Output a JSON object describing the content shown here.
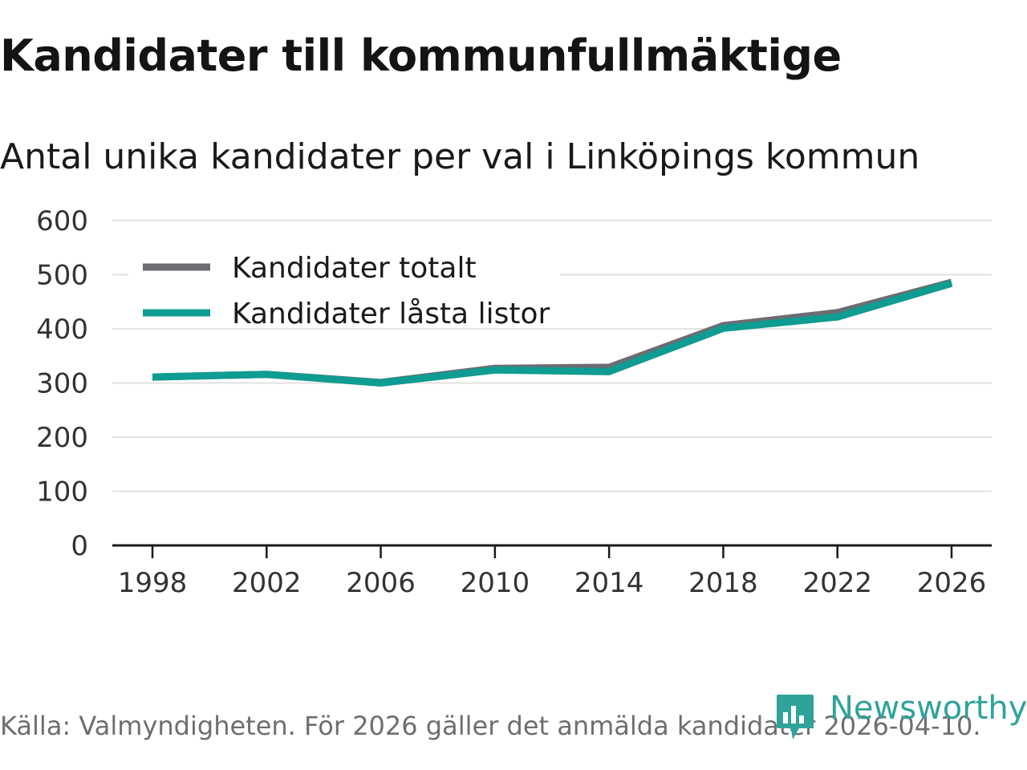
{
  "title": "Kandidater till kommunfullmäktige",
  "subtitle": "Antal unika kandidater per val i Linköpings kommun",
  "source": "Källa: Valmyndigheten. För 2026 gäller det anmälda kandidater 2026-04-10.",
  "brand": {
    "name": "Newsworthy",
    "icon": "newsworthy-logo-icon",
    "color": "#2fa399"
  },
  "chart_data": {
    "type": "line",
    "title": "Kandidater till kommunfullmäktige",
    "subtitle": "Antal unika kandidater per val i Linköpings kommun",
    "xlabel": "",
    "ylabel": "",
    "x": [
      1998,
      2002,
      2006,
      2010,
      2014,
      2018,
      2022,
      2026
    ],
    "ylim": [
      0,
      600
    ],
    "yticks": [
      0,
      100,
      200,
      300,
      400,
      500,
      600
    ],
    "grid": true,
    "legend_position": "top-left",
    "series": [
      {
        "name": "Kandidater totalt",
        "color": "#6d6c72",
        "values": [
          311,
          316,
          301,
          327,
          329,
          406,
          430,
          486
        ]
      },
      {
        "name": "Kandidater låsta listor",
        "color": "#0f9c92",
        "values": [
          311,
          316,
          300,
          324,
          321,
          401,
          422,
          484
        ]
      }
    ]
  }
}
